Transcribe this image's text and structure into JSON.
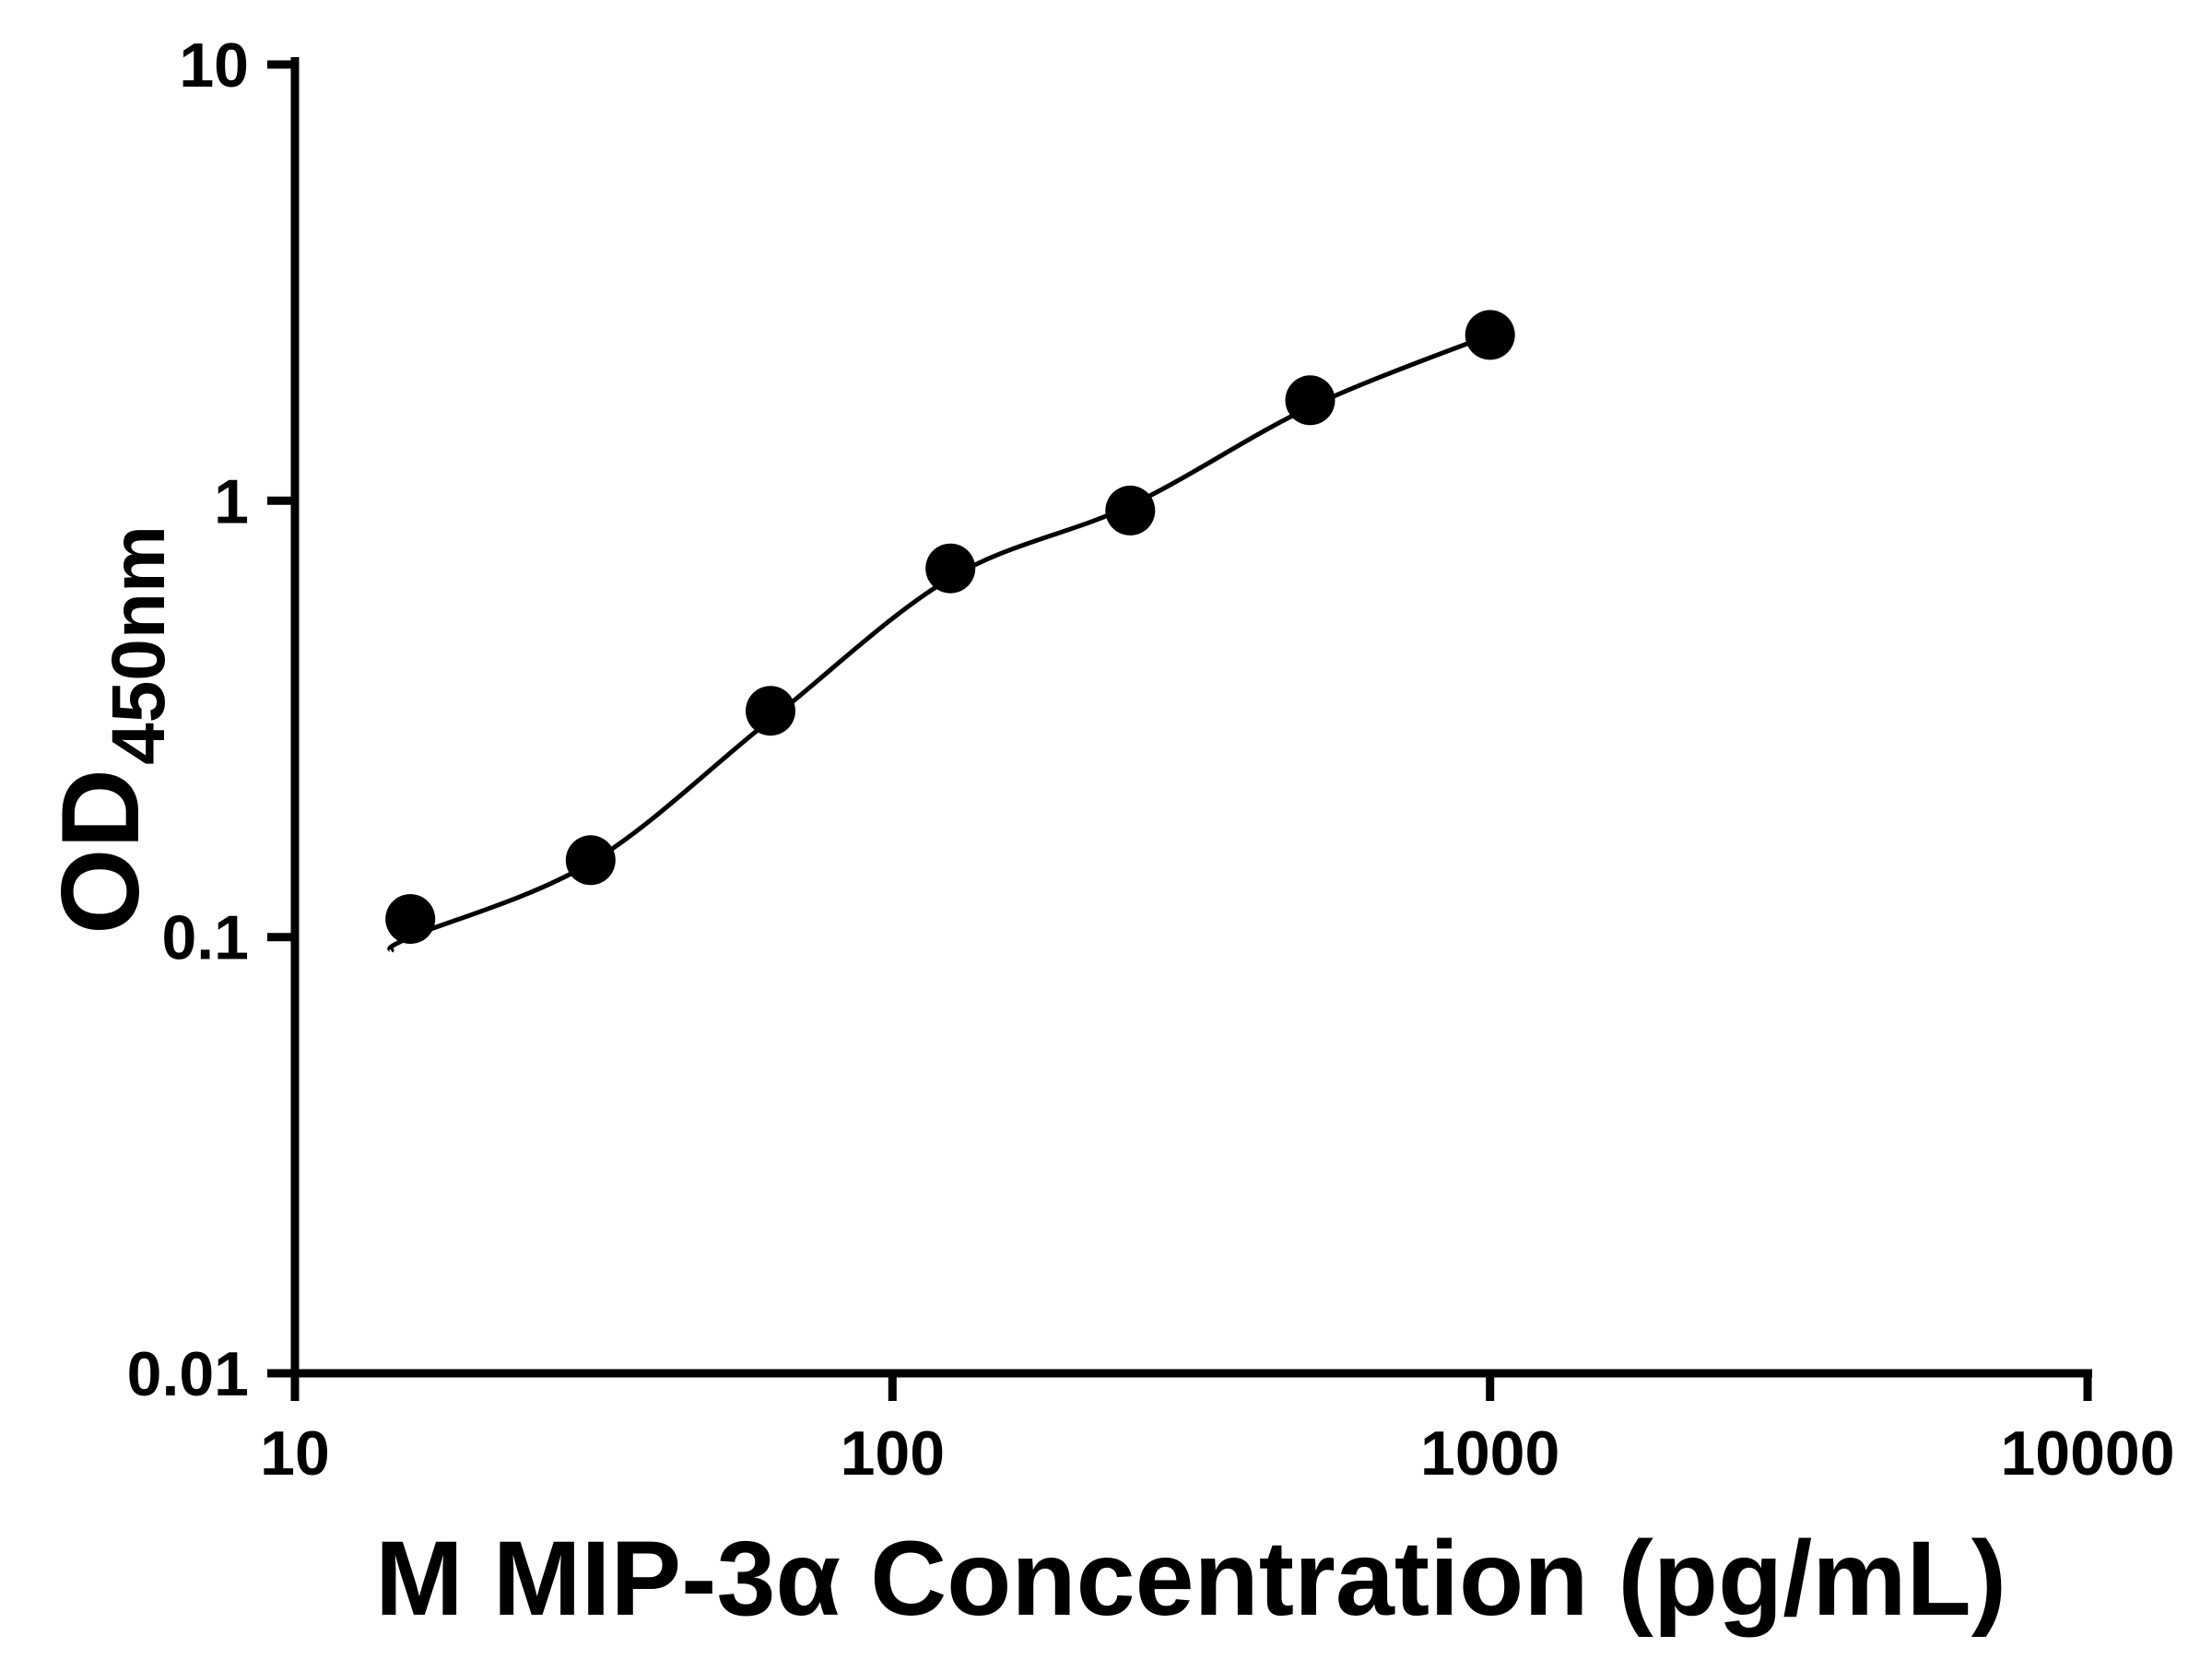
{
  "page": {
    "background": "#ffffff"
  },
  "chart_data": {
    "type": "scatter",
    "title": "",
    "xlabel": "M MIP-3α Concentration (pg/mL)",
    "ylabel": "OD",
    "ylabel_subscript": "450nm",
    "x_scale": "log",
    "y_scale": "log",
    "xlim": [
      10,
      10000
    ],
    "ylim": [
      0.01,
      10
    ],
    "x_ticks": [
      {
        "value": 10,
        "label": "10"
      },
      {
        "value": 100,
        "label": "100"
      },
      {
        "value": 1000,
        "label": "1000"
      },
      {
        "value": 10000,
        "label": "10000"
      }
    ],
    "y_ticks": [
      {
        "value": 0.01,
        "label": "0.01"
      },
      {
        "value": 0.1,
        "label": "0.1"
      },
      {
        "value": 1,
        "label": "1"
      },
      {
        "value": 10,
        "label": "10"
      }
    ],
    "grid": false,
    "legend": false,
    "axis_color": "#000000",
    "series": [
      {
        "name": "fitted-curve",
        "kind": "line",
        "color": "#000000",
        "stroke_width": 5,
        "points": [
          [
            14.5,
            0.093
          ],
          [
            15.6,
            0.1
          ],
          [
            31.25,
            0.148
          ],
          [
            62.5,
            0.315
          ],
          [
            125,
            0.665
          ],
          [
            250,
            0.975
          ],
          [
            500,
            1.64
          ],
          [
            1000,
            2.4
          ]
        ]
      },
      {
        "name": "standard-points",
        "kind": "scatter",
        "marker": "circle",
        "marker_radius": 27,
        "color": "#000000",
        "points": [
          [
            15.6,
            0.11
          ],
          [
            31.25,
            0.15
          ],
          [
            62.5,
            0.33
          ],
          [
            125,
            0.7
          ],
          [
            250,
            0.95
          ],
          [
            500,
            1.7
          ],
          [
            1000,
            2.4
          ]
        ]
      }
    ]
  }
}
